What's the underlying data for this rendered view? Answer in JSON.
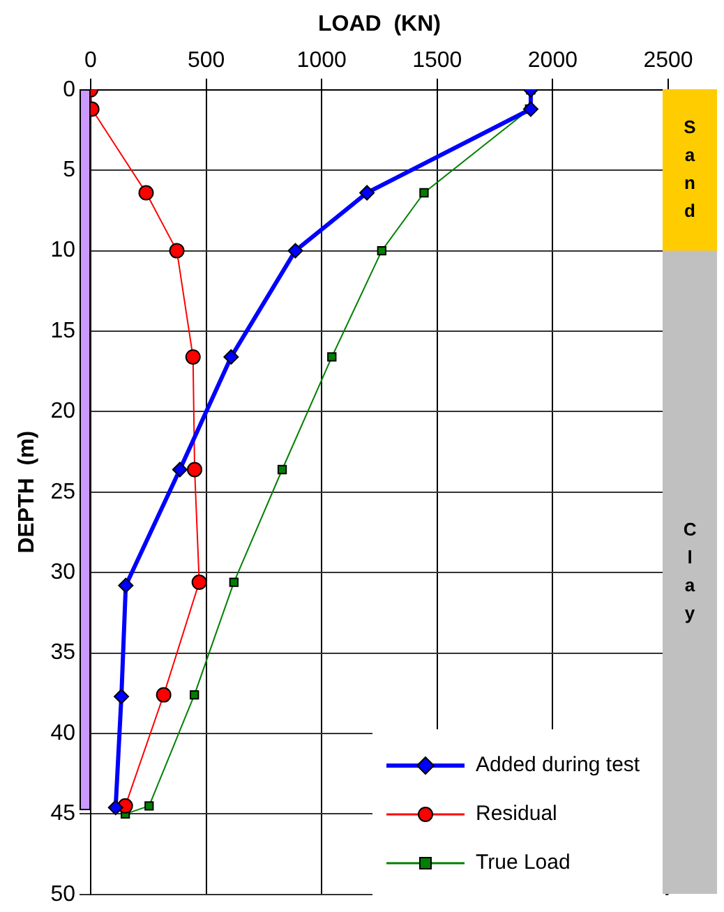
{
  "chart_data": [
    {
      "type": "line",
      "xlabel": "LOAD  (KN)",
      "ylabel": "DEPTH  (m)",
      "xlim": [
        0,
        2500
      ],
      "xticks": [
        0,
        500,
        1000,
        1500,
        2000,
        2500
      ],
      "ylim": [
        50,
        0
      ],
      "yticks": [
        0,
        5,
        10,
        15,
        20,
        25,
        30,
        35,
        40,
        45,
        50
      ],
      "grid": true,
      "legend": "bottom right",
      "series": [
        {
          "name": "Added during test",
          "color": "#0000ff",
          "marker": "diamond",
          "x": [
            1905,
            1905,
            1196,
            886,
            608,
            386,
            152,
            133,
            108
          ],
          "values": [
            0,
            1.2,
            6.4,
            10,
            16.6,
            23.6,
            30.8,
            37.7,
            44.6
          ]
        },
        {
          "name": "Residual",
          "color": "#ff0000",
          "marker": "circle",
          "x": [
            0,
            5,
            240,
            373,
            443,
            450,
            470,
            316,
            150
          ],
          "values": [
            0,
            1.2,
            6.4,
            10,
            16.6,
            23.6,
            30.6,
            37.6,
            44.5
          ]
        },
        {
          "name": "True Load",
          "color": "#008000",
          "marker": "square",
          "x": [
            1905,
            1900,
            1443,
            1260,
            1044,
            829,
            620,
            449,
            253,
            150
          ],
          "values": [
            0,
            1.2,
            6.4,
            10,
            16.6,
            23.6,
            30.6,
            37.6,
            44.5,
            45
          ]
        }
      ]
    },
    {
      "type": "bar",
      "stacked": true,
      "categories": [
        null
      ],
      "ylim": [
        50,
        0
      ],
      "tick_labels": false,
      "series": [
        {
          "name": "Sand",
          "color": "#ffcc00",
          "values": [
            10
          ]
        },
        {
          "name": "Clay",
          "color": "#c0c0c0",
          "values": [
            40
          ]
        }
      ]
    }
  ]
}
